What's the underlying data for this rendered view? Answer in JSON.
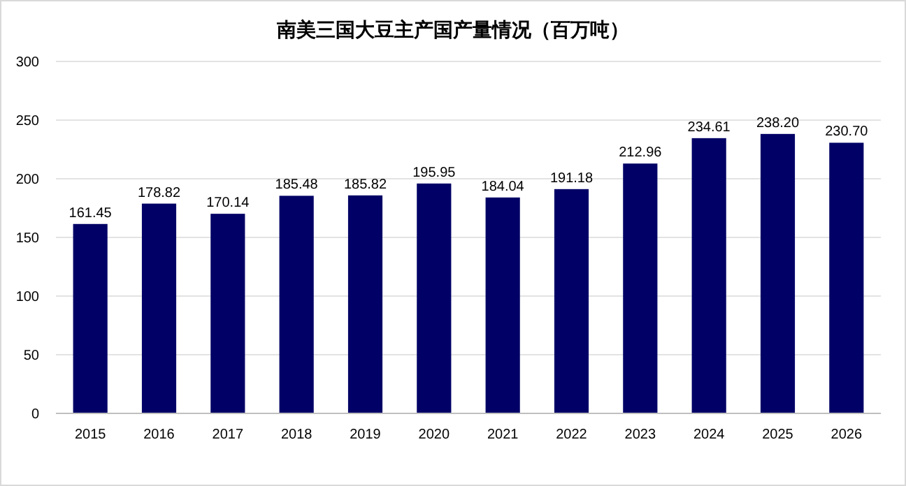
{
  "chart_data": {
    "type": "bar",
    "title": "南美三国大豆主产国产量情况（百万吨）",
    "categories": [
      "2015",
      "2016",
      "2017",
      "2018",
      "2019",
      "2020",
      "2021",
      "2022",
      "2023",
      "2024",
      "2025",
      "2026"
    ],
    "values": [
      161.45,
      178.82,
      170.14,
      185.48,
      185.82,
      195.95,
      184.04,
      191.18,
      212.96,
      234.61,
      238.2,
      230.7
    ],
    "value_labels": [
      "161.45",
      "178.82",
      "170.14",
      "185.48",
      "185.82",
      "195.95",
      "184.04",
      "191.18",
      "212.96",
      "234.61",
      "238.20",
      "230.70"
    ],
    "color": "#000066",
    "ylim": [
      0,
      300
    ],
    "yticks": [
      0,
      50,
      100,
      150,
      200,
      250,
      300
    ],
    "grid": "y"
  }
}
